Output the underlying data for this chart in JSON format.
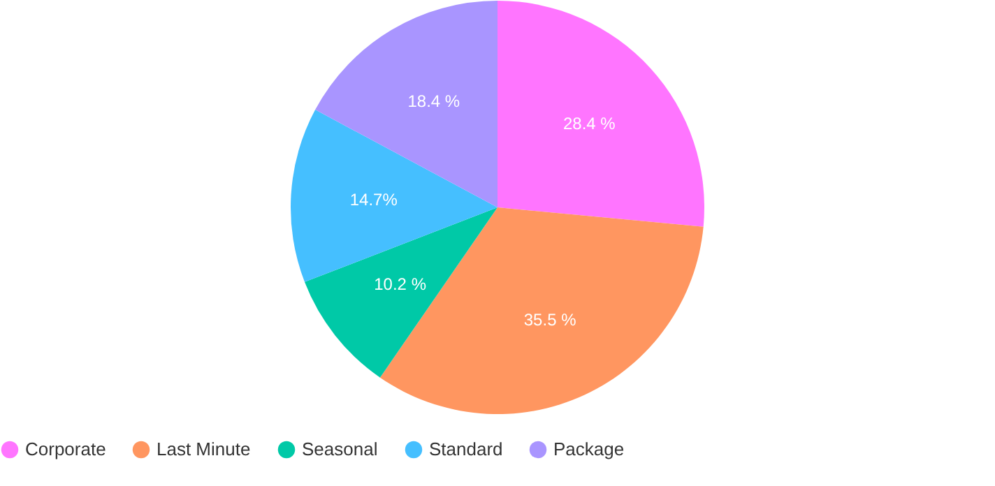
{
  "chart_data": {
    "type": "pie",
    "categories": [
      "Corporate",
      "Last Minute",
      "Seasonal",
      "Standard",
      "Package"
    ],
    "values": [
      28.4,
      35.5,
      10.2,
      14.7,
      18.4
    ],
    "value_labels": [
      "28.4 %",
      "35.5 %",
      "10.2 %",
      "14.7%",
      "18.4 %"
    ],
    "colors": [
      "#ff75ff",
      "#ff9660",
      "#00c9a7",
      "#45bfff",
      "#a995ff"
    ],
    "legend": "bottom"
  }
}
